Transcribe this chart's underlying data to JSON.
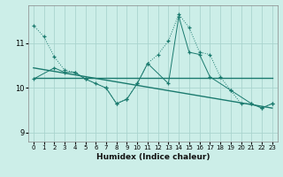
{
  "xlabel": "Humidex (Indice chaleur)",
  "bg_color": "#cceee8",
  "grid_color": "#aad4ce",
  "line_color": "#1a7a6e",
  "xlim": [
    -0.5,
    23.5
  ],
  "ylim": [
    8.8,
    11.85
  ],
  "yticks": [
    9,
    10,
    11
  ],
  "xticks": [
    0,
    1,
    2,
    3,
    4,
    5,
    6,
    7,
    8,
    9,
    10,
    11,
    12,
    13,
    14,
    15,
    16,
    17,
    18,
    19,
    20,
    21,
    22,
    23
  ],
  "series1_x": [
    0,
    1,
    2,
    3,
    4,
    5,
    6,
    7,
    8,
    9,
    10,
    11,
    12,
    13,
    14,
    15,
    16,
    17,
    18,
    19,
    20,
    21,
    22,
    23
  ],
  "series1_y": [
    11.4,
    11.15,
    10.7,
    10.4,
    10.35,
    10.2,
    10.1,
    10.0,
    9.65,
    9.75,
    10.1,
    10.55,
    10.75,
    11.05,
    11.65,
    11.35,
    10.8,
    10.75,
    10.25,
    9.95,
    9.65,
    9.65,
    9.55,
    9.65
  ],
  "series2_x": [
    0,
    2,
    3,
    4,
    5,
    7,
    8,
    9,
    10,
    11,
    13,
    14,
    15,
    16,
    17,
    19,
    21,
    22,
    23
  ],
  "series2_y": [
    10.2,
    10.45,
    10.35,
    10.35,
    10.2,
    10.0,
    9.65,
    9.75,
    10.1,
    10.55,
    10.1,
    11.6,
    10.8,
    10.75,
    10.25,
    9.95,
    9.65,
    9.55,
    9.65
  ],
  "trend1_x": [
    0,
    23
  ],
  "trend1_y": [
    10.22,
    10.22
  ],
  "trend2_x": [
    0,
    23
  ],
  "trend2_y": [
    10.45,
    9.55
  ]
}
